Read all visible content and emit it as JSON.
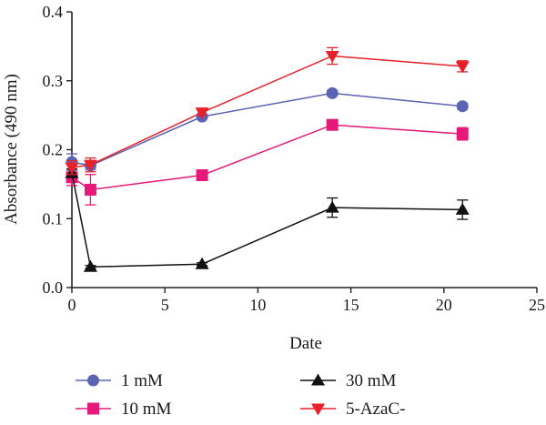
{
  "chart_data": {
    "type": "line",
    "xlabel": "Date",
    "ylabel": "Absorbance (490 nm)",
    "xlim": [
      0,
      25
    ],
    "ylim": [
      0.0,
      0.4
    ],
    "xticks": [
      0,
      5,
      10,
      15,
      20,
      25
    ],
    "yticks": [
      0.0,
      0.1,
      0.2,
      0.3,
      0.4
    ],
    "xtick_labels": [
      "0",
      "5",
      "10",
      "15",
      "20",
      "25"
    ],
    "ytick_labels": [
      "0.0",
      "0.1",
      "0.2",
      "0.3",
      "0.4"
    ],
    "grid": false,
    "legend_position": "bottom",
    "x": [
      0,
      1,
      7,
      14,
      21
    ],
    "series": [
      {
        "name": "1 mM",
        "color": "#5b63b3",
        "marker": "circle",
        "values": [
          0.182,
          0.177,
          0.248,
          0.282,
          0.263
        ],
        "errors": [
          0.012,
          0.006,
          0.003,
          0.004,
          0.004
        ]
      },
      {
        "name": "10 mM",
        "color": "#e6197a",
        "marker": "square",
        "values": [
          0.16,
          0.142,
          0.163,
          0.236,
          0.223
        ],
        "errors": [
          0.012,
          0.022,
          0.004,
          0.004,
          0.009
        ]
      },
      {
        "name": "30 mM",
        "color": "#111111",
        "marker": "triangle-up",
        "values": [
          0.166,
          0.03,
          0.034,
          0.116,
          0.113
        ],
        "errors": [
          0.006,
          0.002,
          0.002,
          0.014,
          0.014
        ]
      },
      {
        "name": "5-AzaC-",
        "color": "#e8202a",
        "marker": "triangle-down",
        "values": [
          0.174,
          0.178,
          0.254,
          0.336,
          0.321
        ],
        "errors": [
          0.01,
          0.01,
          0.004,
          0.012,
          0.008
        ]
      }
    ]
  }
}
